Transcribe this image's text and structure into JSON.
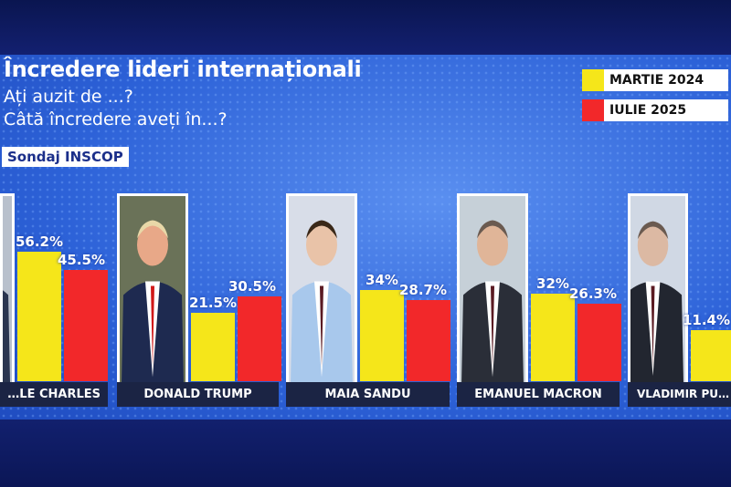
{
  "header": {
    "title": "Încredere lideri internaționali",
    "subtitle1": "Ați auzit de ...?",
    "subtitle2": "Câtă încredere aveți în...?",
    "source_badge": "Sondaj INSCOP"
  },
  "chart_data": {
    "type": "bar",
    "title": "Încredere lideri internaționali",
    "categories": [
      "…LE CHARLES",
      "DONALD TRUMP",
      "MAIA SANDU",
      "EMANUEL MACRON",
      "VLADIMIR PU…"
    ],
    "series": [
      {
        "name": "MARTIE 2024",
        "color": "#f5e61a",
        "values": [
          56.2,
          21.5,
          34,
          32,
          11.4
        ],
        "labels": [
          "56.2%",
          "21.5%",
          "34%",
          "32%",
          "11.4%"
        ]
      },
      {
        "name": "IULIE 2025",
        "color": "#f2282a",
        "values": [
          45.5,
          30.5,
          28.7,
          26.3,
          null
        ],
        "labels": [
          "45.5%",
          "30.5%",
          "28.7%",
          "26.3%",
          ""
        ]
      }
    ],
    "legend": "top-right"
  }
}
